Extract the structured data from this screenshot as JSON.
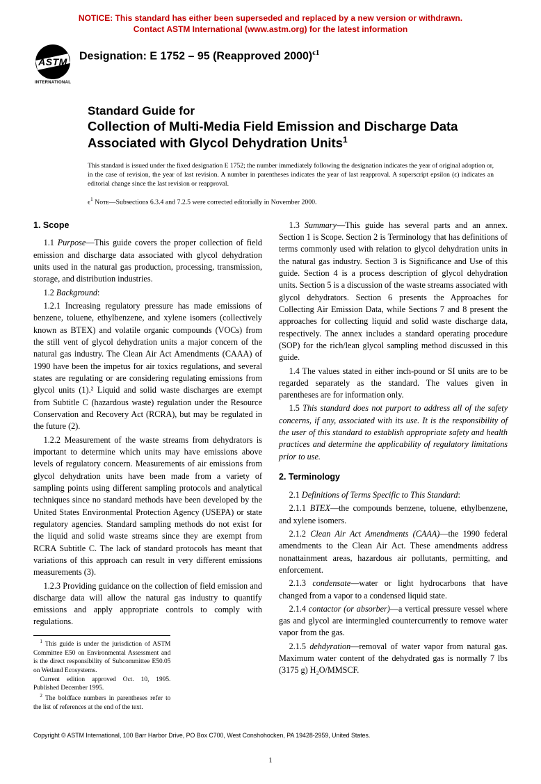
{
  "notice": {
    "line1": "NOTICE: This standard has either been superseded and replaced by a new version or withdrawn.",
    "line2": "Contact ASTM International (www.astm.org) for the latest information",
    "color": "#c20000",
    "fontsize": 12
  },
  "logo": {
    "text": "ASTM",
    "subtext": "INTERNATIONAL"
  },
  "designation": {
    "prefix": "Designation: ",
    "code": "E 1752 – 95 (Reapproved 2000)",
    "super": "ϵ1"
  },
  "title": {
    "kicker": "Standard Guide for",
    "main": "Collection of Multi-Media Field Emission and Discharge Data Associated with Glycol Dehydration Units",
    "footnote_ref": "1"
  },
  "issuance": "This standard is issued under the fixed designation E 1752; the number immediately following the designation indicates the year of original adoption or, in the case of revision, the year of last revision. A number in parentheses indicates the year of last reapproval. A superscript epsilon (ϵ) indicates an editorial change since the last revision or reapproval.",
  "editorial_note": {
    "prefix": "ϵ",
    "sup": "1",
    "label": " Nᴏᴛᴇ",
    "body": "—Subsections 6.3.4 and 7.2.5 were corrected editorially in November 2000."
  },
  "sections": [
    {
      "heading": "1. Scope",
      "items": [
        {
          "num": "1.1",
          "lead": "Purpose",
          "text": "—This guide covers the proper collection of field emission and discharge data associated with glycol dehydration units used in the natural gas production, processing, transmission, storage, and distribution industries."
        },
        {
          "num": "1.2",
          "lead": "Background",
          "text": ":"
        },
        {
          "num": "1.2.1",
          "text": "Increasing regulatory pressure has made emissions of benzene, toluene, ethylbenzene, and xylene isomers (collectively known as BTEX) and volatile organic compounds (VOCs) from the still vent of glycol dehydration units a major concern of the natural gas industry. The Clean Air Act Amendments (CAAA) of 1990 have been the impetus for air toxics regulations, and several states are regulating or are considering regulating emissions from glycol units (1).² Liquid and solid waste discharges are exempt from Subtitle C (hazardous waste) regulation under the Resource Conservation and Recovery Act (RCRA), but may be regulated in the future (2)."
        },
        {
          "num": "1.2.2",
          "text": "Measurement of the waste streams from dehydrators is important to determine which units may have emissions above levels of regulatory concern. Measurements of air emissions from glycol dehydration units have been made from a variety of sampling points using different sampling protocols and analytical techniques since no standard methods have been developed by the United States Environmental Protection Agency (USEPA) or state regulatory agencies. Standard sampling methods do not exist for the liquid and solid waste streams since they are exempt from RCRA Subtitle C. The lack of standard protocols has meant that variations of this approach can result in very different emissions measurements (3)."
        },
        {
          "num": "1.2.3",
          "text": "Providing guidance on the collection of field emission and discharge data will allow the natural gas industry to quantify emissions and apply appropriate controls to comply with regulations."
        },
        {
          "num": "1.3",
          "lead": "Summary",
          "text": "—This guide has several parts and an annex. Section 1 is Scope. Section 2 is Terminology that has definitions of terms commonly used with relation to glycol dehydration units in the natural gas industry. Section 3 is Significance and Use of this guide. Section 4 is a process description of glycol dehydration units. Section 5 is a discussion of the waste streams associated with glycol dehydrators. Section 6 presents the Approaches for Collecting Air Emission Data, while Sections 7 and 8 present the approaches for collecting liquid and solid waste discharge data, respectively. The annex includes a standard operating procedure (SOP) for the rich/lean glycol sampling method discussed in this guide."
        },
        {
          "num": "1.4",
          "text": "The values stated in either inch-pound or SI units are to be regarded separately as the standard. The values given in parentheses are for information only."
        },
        {
          "num": "1.5",
          "italic": true,
          "text": "This standard does not purport to address all of the safety concerns, if any, associated with its use. It is the responsibility of the user of this standard to establish appropriate safety and health practices and determine the applicability of regulatory limitations prior to use."
        }
      ]
    },
    {
      "heading": "2. Terminology",
      "items": [
        {
          "num": "2.1",
          "lead": "Definitions of Terms Specific to This Standard",
          "text": ":"
        },
        {
          "num": "2.1.1",
          "lead": "BTEX",
          "text": "—the compounds benzene, toluene, ethylbenzene, and xylene isomers."
        },
        {
          "num": "2.1.2",
          "lead": "Clean Air Act Amendments (CAAA)",
          "text": "—the 1990 federal amendments to the Clean Air Act. These amendments address nonattainment areas, hazardous air pollutants, permitting, and enforcement."
        },
        {
          "num": "2.1.3",
          "lead": "condensate",
          "text": "—water or light hydrocarbons that have changed from a vapor to a condensed liquid state."
        },
        {
          "num": "2.1.4",
          "lead": "contactor (or absorber)",
          "text": "—a vertical pressure vessel where gas and glycol are intermingled countercurrently to remove water vapor from the gas."
        },
        {
          "num": "2.1.5",
          "lead": "dehdyration",
          "text": "—removal of water vapor from natural gas. Maximum water content of the dehydrated gas is normally 7 lbs (3175 g) H₂O/MMSCF."
        }
      ]
    }
  ],
  "footnotes": [
    {
      "ref": "1",
      "text": "This guide is under the jurisdiction of ASTM Committee E50 on Environmental Assessment and is the direct responsibility of Subcommittee E50.05 on Wetland Ecosystems."
    },
    {
      "ref": "",
      "text": "Current edition approved Oct. 10, 1995. Published December 1995."
    },
    {
      "ref": "2",
      "text": "The boldface numbers in parentheses refer to the list of references at the end of the text."
    }
  ],
  "copyright": "Copyright © ASTM International, 100 Barr Harbor Drive, PO Box C700, West Conshohocken, PA 19428-2959, United States.",
  "page_number": "1",
  "styling": {
    "body_fontsize": 12.2,
    "title_fontsize": 18.5,
    "background": "#ffffff",
    "text_color": "#000000"
  }
}
